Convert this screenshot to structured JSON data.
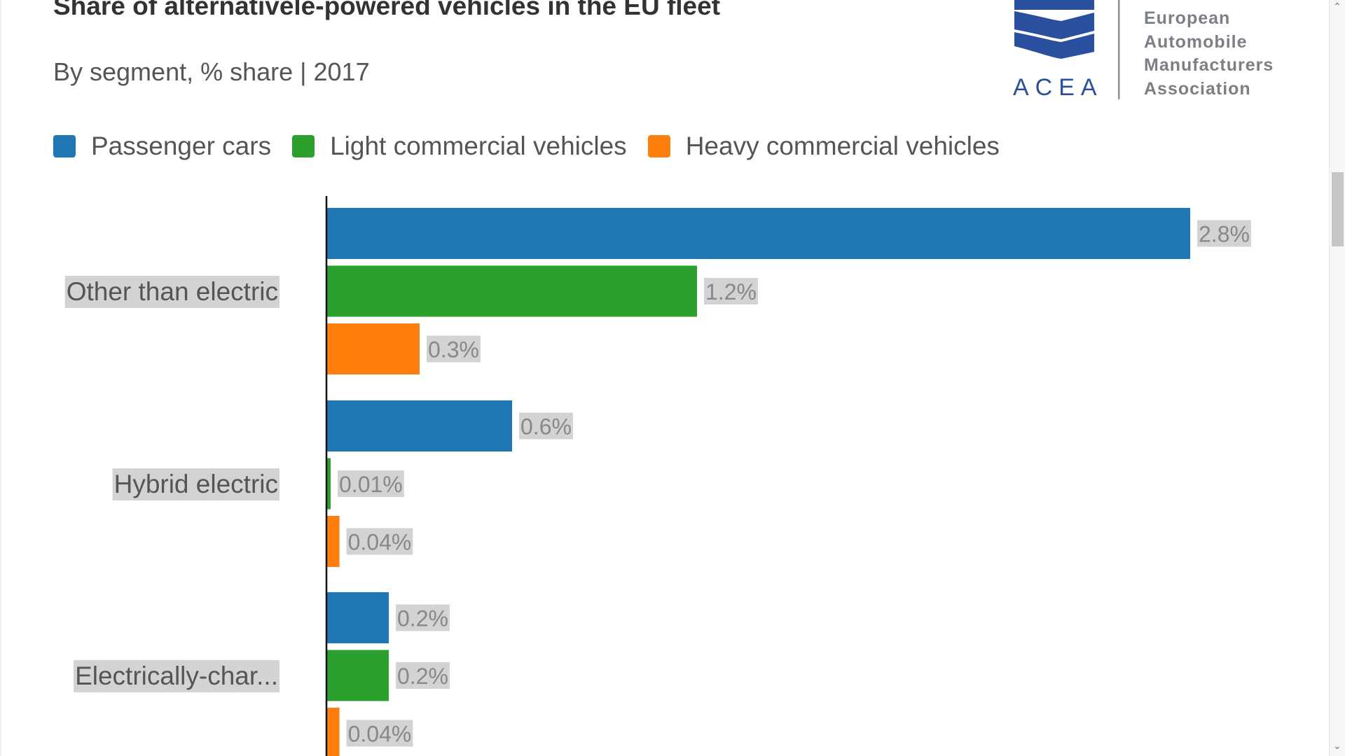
{
  "title": "Share of alternativele-powered vehicles in the EU fleet",
  "subtitle": "By segment, % share | 2017",
  "logo": {
    "acronym": "ACEA",
    "lines": [
      "European",
      "Automobile",
      "Manufacturers",
      "Association"
    ],
    "color": "#2a4f9e"
  },
  "chart_data": {
    "type": "bar",
    "orientation": "horizontal",
    "title": "Share of alternativele-powered vehicles in the EU fleet",
    "subtitle": "By segment, % share | 2017",
    "categories": [
      "Other than electric",
      "Hybrid electric",
      "Electrically-char..."
    ],
    "series": [
      {
        "name": "Passenger cars",
        "color": "#1f77b4",
        "values": [
          2.8,
          0.6,
          0.2
        ],
        "labels": [
          "2.8%",
          "0.6%",
          "0.2%"
        ]
      },
      {
        "name": "Light commercial vehicles",
        "color": "#2ca02c",
        "values": [
          1.2,
          0.01,
          0.2
        ],
        "labels": [
          "1.2%",
          "0.01%",
          "0.2%"
        ]
      },
      {
        "name": "Heavy commercial vehicles",
        "color": "#ff7f0e",
        "values": [
          0.3,
          0.04,
          0.04
        ],
        "labels": [
          "0.3%",
          "0.04%",
          "0.04%"
        ]
      }
    ],
    "xlim": [
      0,
      2.8
    ],
    "legend": "top",
    "grid": false
  },
  "scrollbar": {
    "up_glyph": "⌃",
    "down_glyph": "⌄"
  }
}
